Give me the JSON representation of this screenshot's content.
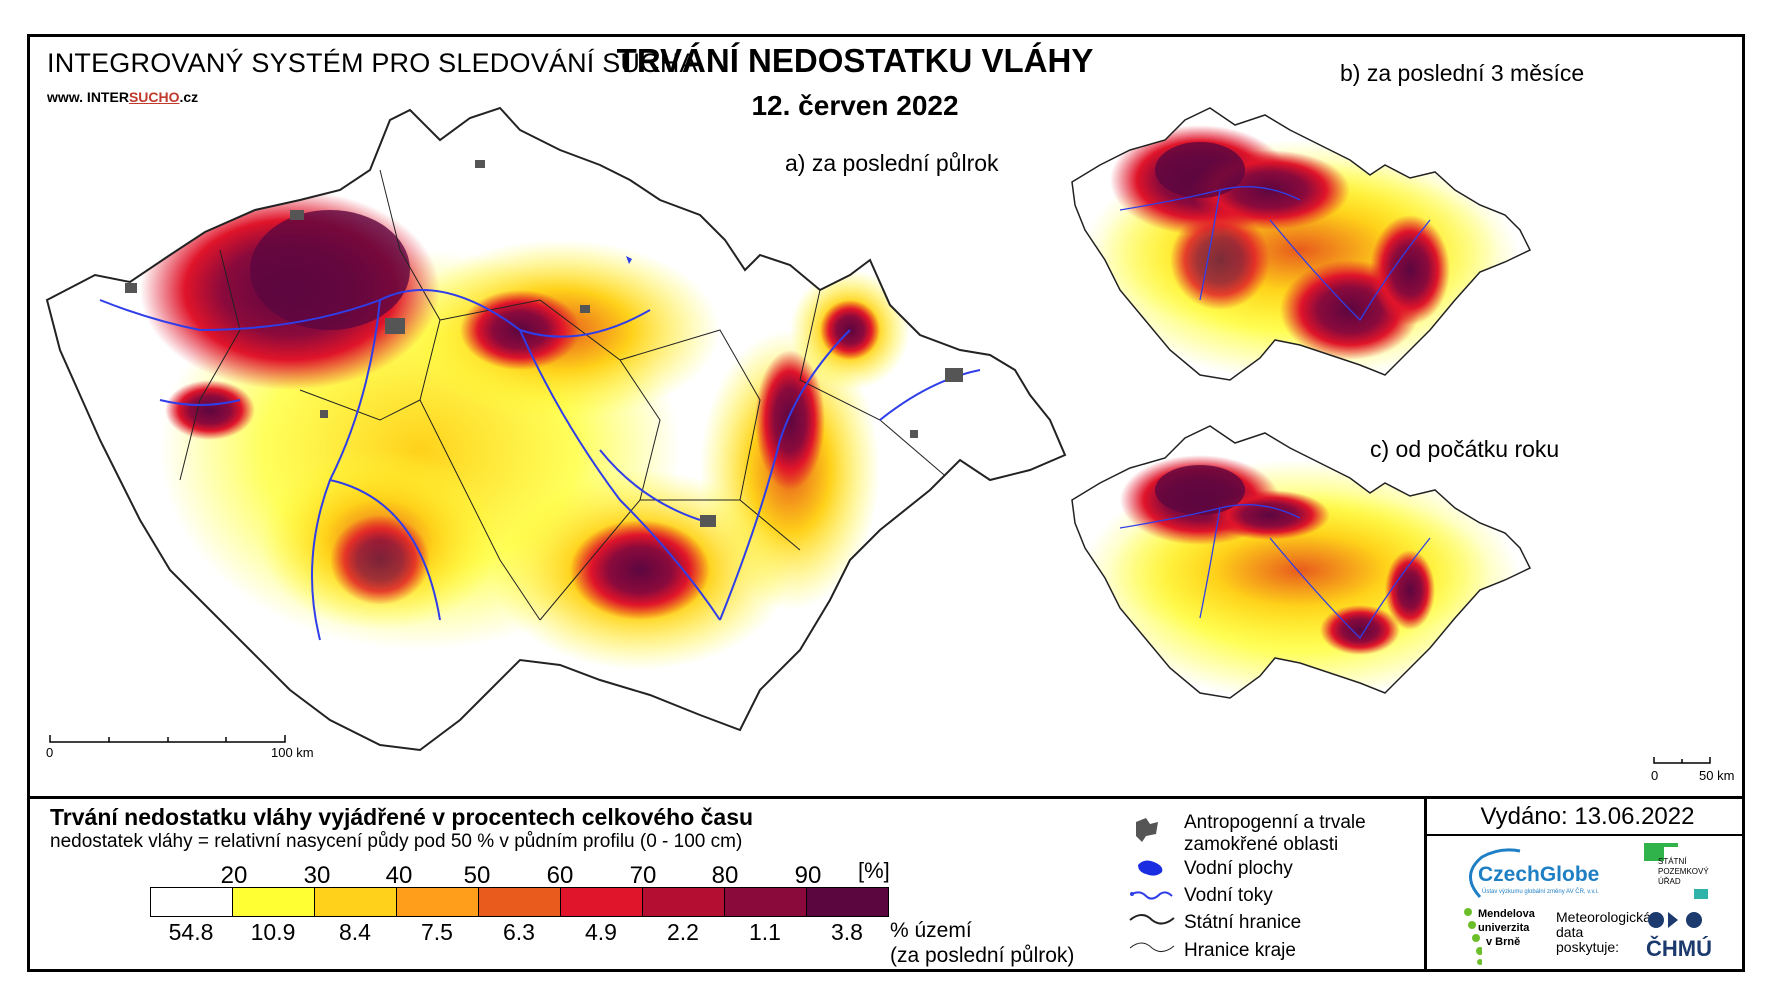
{
  "header": {
    "system_title": "INTEGROVANÝ SYSTÉM PRO SLEDOVÁNÍ SUCHA",
    "url_prefix": "www. INTER",
    "url_highlight": "SUCHO",
    "url_suffix": ".cz",
    "main_title": "TRVÁNÍ NEDOSTATKU VLÁHY",
    "date": "12. červen 2022"
  },
  "maps": {
    "a_label": "a) za poslední půlrok",
    "b_label": "b) za poslední 3 měsíce",
    "c_label": "c) od počátku roku",
    "scale_a": {
      "start": "0",
      "end": "100 km"
    },
    "scale_small": {
      "start": "0",
      "end": "50 km"
    }
  },
  "legend": {
    "title": "Trvání nedostatku vláhy vyjádřené v procentech celkového času",
    "subtitle": "nedostatek vláhy = relativní nasycení půdy pod 50 % v půdním profilu (0 - 100 cm)",
    "ticks": [
      "20",
      "30",
      "40",
      "50",
      "60",
      "70",
      "80",
      "90"
    ],
    "unit": "[%]",
    "classes": [
      {
        "color": "#ffffff",
        "pct": "54.8"
      },
      {
        "color": "#ffff33",
        "pct": "10.9"
      },
      {
        "color": "#ffd11a",
        "pct": "8.4"
      },
      {
        "color": "#ff9e1a",
        "pct": "7.5"
      },
      {
        "color": "#e85b1c",
        "pct": "6.3"
      },
      {
        "color": "#e0142a",
        "pct": "4.9"
      },
      {
        "color": "#b40f32",
        "pct": "2.2"
      },
      {
        "color": "#8a0a3c",
        "pct": "1.1"
      },
      {
        "color": "#5c0640",
        "pct": "3.8"
      }
    ],
    "pct_label_line1": "% území",
    "pct_label_line2": "(za poslední půlrok)"
  },
  "symbols": [
    {
      "icon": "anthropogenic-area-icon",
      "label_line1": "Antropogenní a trvale",
      "label_line2": "zamokřené oblasti"
    },
    {
      "icon": "water-body-icon",
      "label_line1": "Vodní plochy",
      "label_line2": ""
    },
    {
      "icon": "river-icon",
      "label_line1": "Vodní toky",
      "label_line2": ""
    },
    {
      "icon": "state-border-icon",
      "label_line1": "Státní hranice",
      "label_line2": ""
    },
    {
      "icon": "region-border-icon",
      "label_line1": "Hranice kraje",
      "label_line2": ""
    }
  ],
  "footer": {
    "issued": "Vydáno: 13.06.2022",
    "czechglobe": "CzechGlobe",
    "czechglobe_sub": "Ústav výzkumu globální změny AV ČR, v.v.i.",
    "spu_lines": [
      "STÁTNÍ",
      "POZEMKOVÝ",
      "ÚŘAD"
    ],
    "mendel_lines": [
      "Mendelova",
      "univerzita",
      "v Brně"
    ],
    "meteo_lines": [
      "Meteorologická",
      "data",
      "poskytuje:"
    ],
    "chmu": "ČHMÚ"
  },
  "colors": {
    "river": "#2f3ee8",
    "urban": "#555555",
    "border": "#222222",
    "czechglobe_blue": "#1e7fc4",
    "spu_green": "#2fb34a",
    "spu_teal": "#2fb3a8",
    "mendel_green": "#6cbf2a",
    "chmu_navy": "#1c3a6e"
  }
}
